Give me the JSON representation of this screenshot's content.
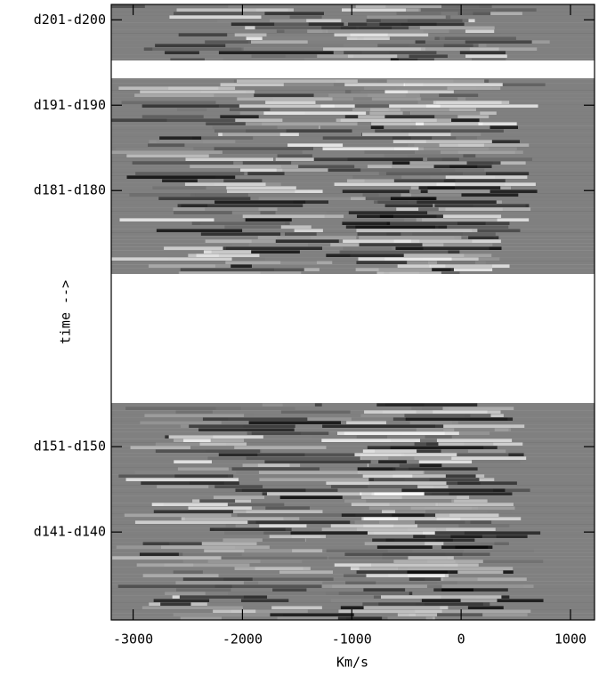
{
  "chart_data": {
    "type": "image",
    "xlabel": "Km/s",
    "ylabel": "time -->",
    "xlim": [
      -3200,
      1220
    ],
    "xticks": [
      -3000,
      -2000,
      -1000,
      0,
      1000
    ],
    "ylim": [
      130.7,
      202.8
    ],
    "yticks": [
      {
        "value": 201,
        "label": "d201-d200"
      },
      {
        "value": 191,
        "label": "d191-d190"
      },
      {
        "value": 181,
        "label": "d181-d180"
      },
      {
        "value": 151,
        "label": "d151-d150"
      },
      {
        "value": 141,
        "label": "d141-d140"
      }
    ]
  }
}
